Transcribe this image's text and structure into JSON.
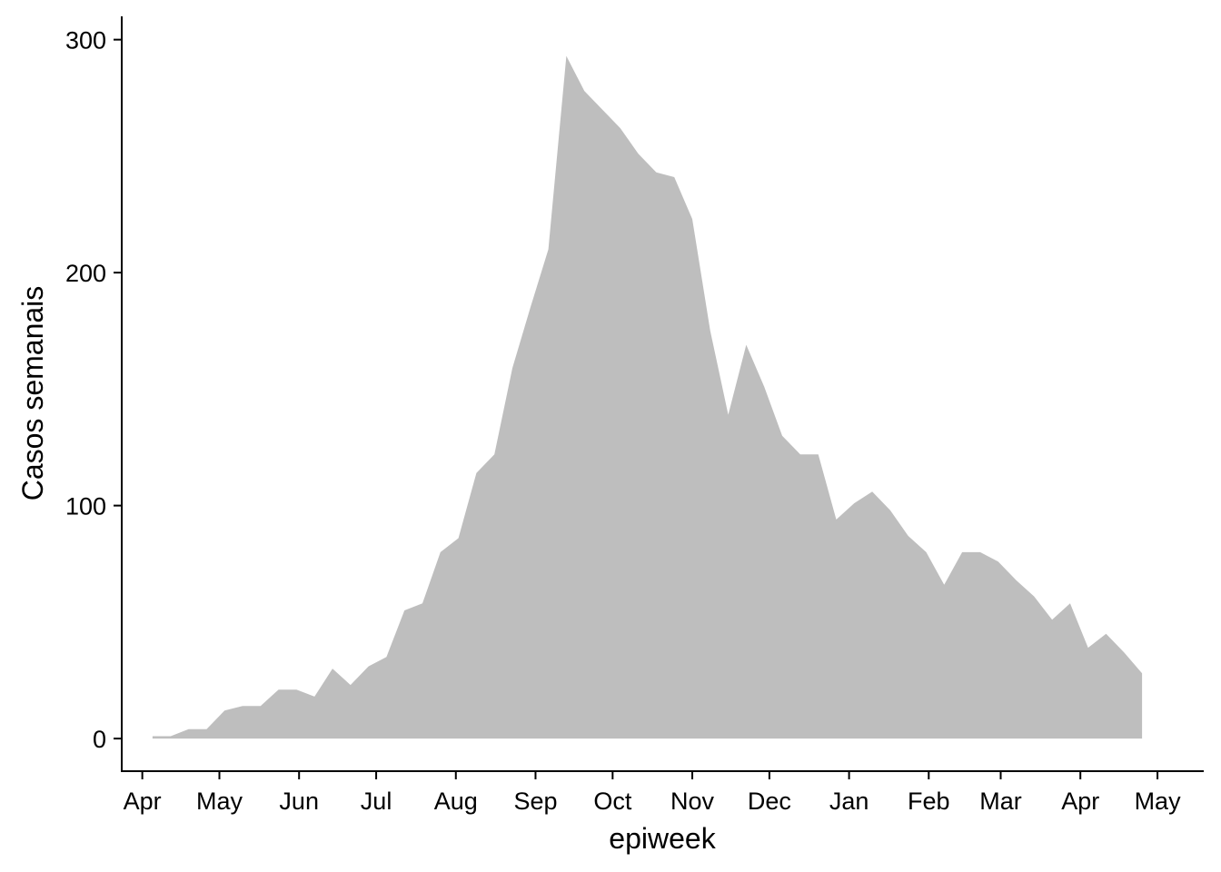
{
  "chart_data": {
    "type": "area",
    "xlabel": "epiweek",
    "ylabel": "Casos semanais",
    "ylim": [
      -14,
      310
    ],
    "y_ticks": [
      0,
      100,
      200,
      300
    ],
    "x_range": [
      "2020-03-24",
      "2021-05-19"
    ],
    "x_ticks": [
      {
        "label": "Apr",
        "date": "2020-04-01"
      },
      {
        "label": "May",
        "date": "2020-05-01"
      },
      {
        "label": "Jun",
        "date": "2020-06-01"
      },
      {
        "label": "Jul",
        "date": "2020-07-01"
      },
      {
        "label": "Aug",
        "date": "2020-08-01"
      },
      {
        "label": "Sep",
        "date": "2020-09-01"
      },
      {
        "label": "Oct",
        "date": "2020-10-01"
      },
      {
        "label": "Nov",
        "date": "2020-11-01"
      },
      {
        "label": "Dec",
        "date": "2020-12-01"
      },
      {
        "label": "Jan",
        "date": "2021-01-01"
      },
      {
        "label": "Feb",
        "date": "2021-02-01"
      },
      {
        "label": "Mar",
        "date": "2021-03-01"
      },
      {
        "label": "Apr",
        "date": "2021-04-01"
      },
      {
        "label": "May",
        "date": "2021-05-01"
      }
    ],
    "grid": false,
    "fill_color": "#bebebe",
    "x": [
      "2020-04-05",
      "2020-04-12",
      "2020-04-19",
      "2020-04-26",
      "2020-05-03",
      "2020-05-10",
      "2020-05-17",
      "2020-05-24",
      "2020-05-31",
      "2020-06-07",
      "2020-06-14",
      "2020-06-21",
      "2020-06-28",
      "2020-07-05",
      "2020-07-12",
      "2020-07-19",
      "2020-07-26",
      "2020-08-02",
      "2020-08-09",
      "2020-08-16",
      "2020-08-23",
      "2020-08-30",
      "2020-09-06",
      "2020-09-13",
      "2020-09-20",
      "2020-09-27",
      "2020-10-04",
      "2020-10-11",
      "2020-10-18",
      "2020-10-25",
      "2020-11-01",
      "2020-11-08",
      "2020-11-15",
      "2020-11-22",
      "2020-11-29",
      "2020-12-06",
      "2020-12-13",
      "2020-12-20",
      "2020-12-27",
      "2021-01-03",
      "2021-01-10",
      "2021-01-17",
      "2021-01-24",
      "2021-01-31",
      "2021-02-07",
      "2021-02-14",
      "2021-02-21",
      "2021-02-28",
      "2021-03-07",
      "2021-03-14",
      "2021-03-21",
      "2021-03-28",
      "2021-04-04",
      "2021-04-11",
      "2021-04-18",
      "2021-04-25"
    ],
    "values": [
      1,
      1,
      4,
      4,
      12,
      14,
      14,
      21,
      21,
      18,
      30,
      23,
      31,
      35,
      55,
      58,
      80,
      86,
      114,
      122,
      159,
      185,
      210,
      293,
      278,
      270,
      262,
      251,
      243,
      241,
      223,
      175,
      139,
      169,
      151,
      130,
      122,
      122,
      94,
      101,
      106,
      98,
      87,
      80,
      66,
      80,
      80,
      76,
      68,
      61,
      51,
      58,
      39,
      45,
      37,
      28
    ]
  }
}
